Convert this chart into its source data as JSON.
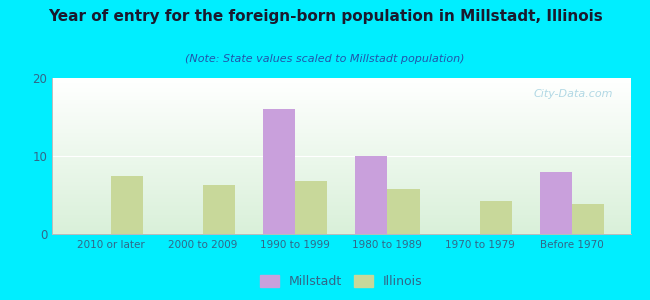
{
  "title": "Year of entry for the foreign-born population in Millstadt, Illinois",
  "subtitle": "(Note: State values scaled to Millstadt population)",
  "categories": [
    "2010 or later",
    "2000 to 2009",
    "1990 to 1999",
    "1980 to 1989",
    "1970 to 1979",
    "Before 1970"
  ],
  "millstadt_values": [
    0,
    0,
    16,
    10,
    0,
    8
  ],
  "illinois_values": [
    7.5,
    6.3,
    6.8,
    5.8,
    4.2,
    3.9
  ],
  "millstadt_color": "#c9a0dc",
  "illinois_color": "#c8d89a",
  "bar_width": 0.35,
  "ylim": [
    0,
    20
  ],
  "yticks": [
    0,
    10,
    20
  ],
  "background_color": "#00eeff",
  "grid_color": "#ffffff",
  "title_color": "#1a1a2e",
  "subtitle_color": "#2255aa",
  "tick_color": "#336688",
  "watermark": "City-Data.com",
  "watermark_color": "#99ccdd"
}
